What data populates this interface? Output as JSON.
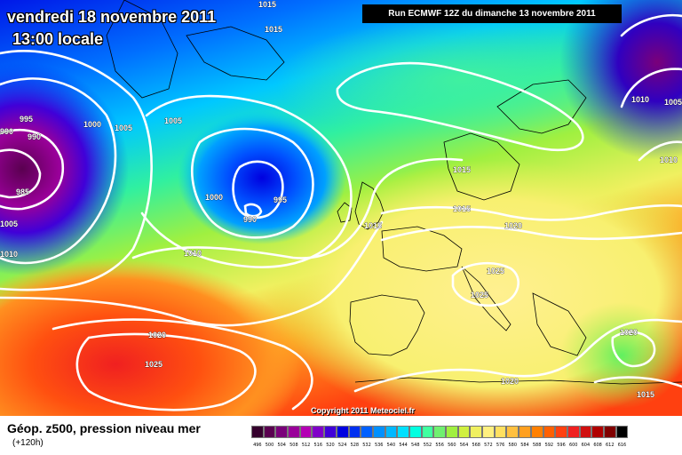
{
  "header": {
    "date": "vendredi 18 novembre 2011",
    "local_time": "13:00 locale",
    "run": "Run ECMWF 12Z du dimanche 13 novembre 2011"
  },
  "copyright": "Copyright 2011 Meteociel.fr",
  "legend": {
    "title": "Géop. z500, pression niveau mer",
    "lead": "(+120h)",
    "scale": [
      {
        "value": "496",
        "color": "#35002d"
      },
      {
        "value": "500",
        "color": "#5a0050"
      },
      {
        "value": "504",
        "color": "#7a007a"
      },
      {
        "value": "508",
        "color": "#9a009a"
      },
      {
        "value": "512",
        "color": "#b400b4"
      },
      {
        "value": "516",
        "color": "#8000c8"
      },
      {
        "value": "520",
        "color": "#4000d8"
      },
      {
        "value": "524",
        "color": "#0000e0"
      },
      {
        "value": "528",
        "color": "#0030f0"
      },
      {
        "value": "532",
        "color": "#0060ff"
      },
      {
        "value": "536",
        "color": "#0090ff"
      },
      {
        "value": "540",
        "color": "#00b8ff"
      },
      {
        "value": "544",
        "color": "#00e0ff"
      },
      {
        "value": "548",
        "color": "#00ffe0"
      },
      {
        "value": "552",
        "color": "#40ffa0"
      },
      {
        "value": "556",
        "color": "#70f070"
      },
      {
        "value": "560",
        "color": "#a0f040"
      },
      {
        "value": "564",
        "color": "#d0f040"
      },
      {
        "value": "568",
        "color": "#f0f060"
      },
      {
        "value": "572",
        "color": "#fff080"
      },
      {
        "value": "576",
        "color": "#ffe060"
      },
      {
        "value": "580",
        "color": "#ffc040"
      },
      {
        "value": "584",
        "color": "#ffa020"
      },
      {
        "value": "588",
        "color": "#ff8000"
      },
      {
        "value": "592",
        "color": "#ff6000"
      },
      {
        "value": "596",
        "color": "#ff4010"
      },
      {
        "value": "600",
        "color": "#f02020"
      },
      {
        "value": "604",
        "color": "#d01010"
      },
      {
        "value": "608",
        "color": "#b00000"
      },
      {
        "value": "612",
        "color": "#800000"
      },
      {
        "value": "616",
        "color": "#000000"
      }
    ]
  },
  "contour_labels": [
    "1015",
    "1015",
    "995",
    "990",
    "985",
    "990",
    "1000",
    "1005",
    "1005",
    "1000",
    "995",
    "990",
    "1005",
    "1010",
    "1010",
    "1020",
    "1025",
    "1015",
    "1015",
    "1020",
    "1025",
    "1025",
    "1015",
    "1020",
    "1020",
    "1015",
    "1010",
    "1005",
    "1010"
  ]
}
